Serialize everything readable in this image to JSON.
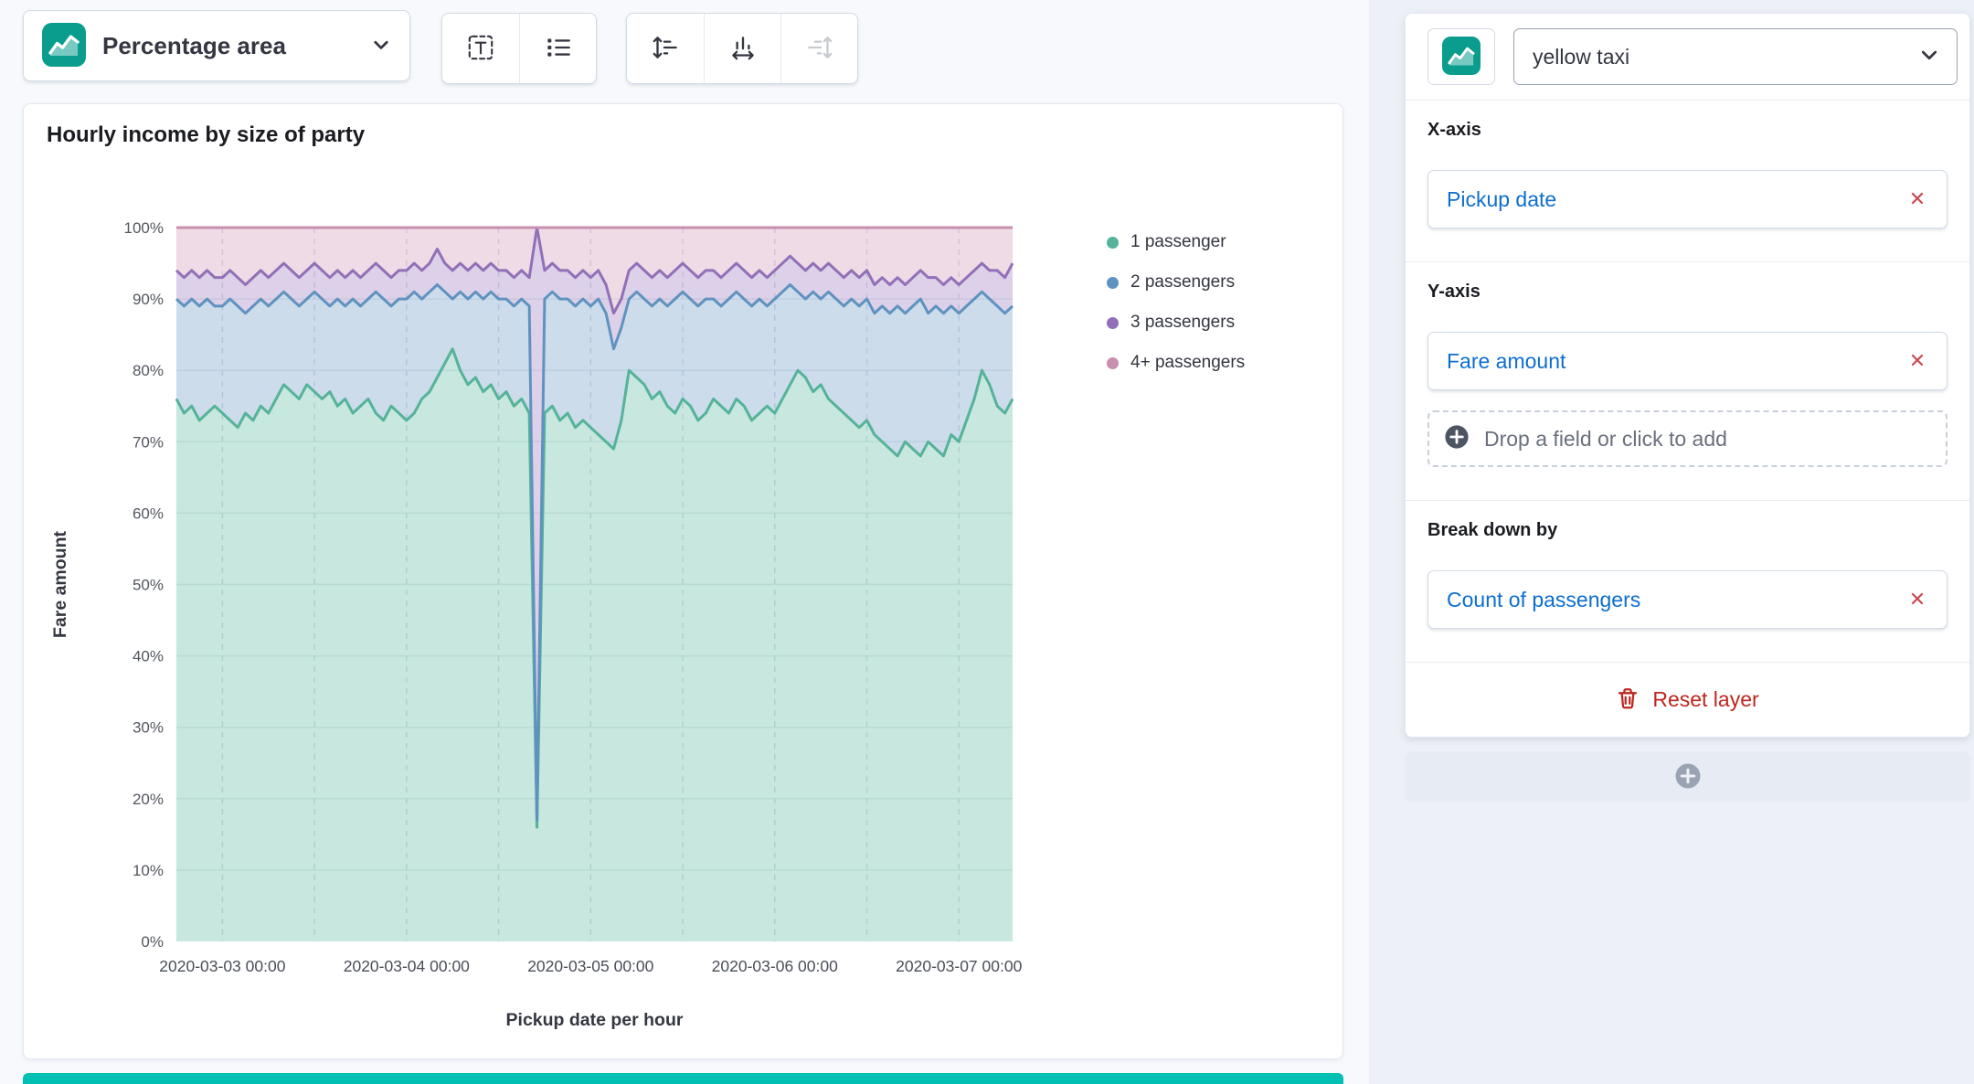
{
  "palette": {
    "series_colors": [
      "#54B399",
      "#6092C0",
      "#9170B8",
      "#CA8EAE"
    ],
    "chart_icon_teal": "#0A9D8E",
    "suggestion_accent": "#00BFB3",
    "link_blue": "#0D6ECF",
    "danger_red": "#BD271E"
  },
  "toolbar": {
    "chart_type_label": "Percentage area",
    "icons": [
      "area-chart",
      "chevron-down",
      "value-labels",
      "legend-settings",
      "left-axis",
      "bottom-axis",
      "right-axis"
    ],
    "right_axis_disabled": true
  },
  "chart_data": {
    "type": "area",
    "stacked": "percentage",
    "title": "Hourly income by size of party",
    "xlabel": "Pickup date per hour",
    "ylabel": "Fare amount",
    "ylim": [
      0,
      100
    ],
    "grid": true,
    "legend_position": "right",
    "x_start": "2020-03-02 18:00",
    "x_step_hours": 1,
    "x_tick_labels": [
      "2020-03-03 00:00",
      "2020-03-04 00:00",
      "2020-03-05 00:00",
      "2020-03-06 00:00",
      "2020-03-07 00:00"
    ],
    "x_tick_indices": [
      6,
      30,
      54,
      78,
      102
    ],
    "x_minor_grid_indices": [
      6,
      18,
      30,
      42,
      54,
      66,
      78,
      90,
      102
    ],
    "y_ticks": [
      "0%",
      "10%",
      "20%",
      "30%",
      "40%",
      "50%",
      "60%",
      "70%",
      "80%",
      "90%",
      "100%"
    ],
    "series": [
      {
        "name": "1 passenger",
        "color": "#54B399",
        "values": [
          76,
          74,
          75,
          73,
          74,
          75,
          74,
          73,
          72,
          74,
          73,
          75,
          74,
          76,
          78,
          77,
          76,
          78,
          77,
          76,
          77,
          75,
          76,
          74,
          75,
          76,
          74,
          73,
          75,
          74,
          73,
          74,
          76,
          77,
          79,
          81,
          83,
          80,
          78,
          79,
          77,
          78,
          76,
          77,
          75,
          76,
          74,
          16,
          74,
          75,
          73,
          74,
          72,
          73,
          72,
          71,
          70,
          69,
          73,
          80,
          79,
          78,
          76,
          77,
          75,
          74,
          76,
          75,
          73,
          74,
          76,
          75,
          74,
          76,
          75,
          73,
          74,
          75,
          74,
          76,
          78,
          80,
          79,
          77,
          78,
          76,
          75,
          74,
          73,
          72,
          73,
          71,
          70,
          69,
          68,
          70,
          69,
          68,
          70,
          69,
          68,
          71,
          70,
          73,
          76,
          80,
          78,
          75,
          74,
          76
        ]
      },
      {
        "name": "2 passengers",
        "color": "#6092C0",
        "values": [
          14,
          15,
          15,
          16,
          16,
          14,
          15,
          17,
          17,
          14,
          16,
          15,
          15,
          14,
          13,
          13,
          13,
          12,
          14,
          14,
          12,
          15,
          13,
          16,
          14,
          14,
          17,
          17,
          14,
          16,
          17,
          17,
          14,
          14,
          13,
          10,
          7,
          11,
          12,
          12,
          13,
          13,
          14,
          13,
          14,
          14,
          15,
          1,
          16,
          16,
          17,
          16,
          17,
          17,
          17,
          19,
          18,
          14,
          13,
          10,
          12,
          12,
          13,
          13,
          14,
          16,
          15,
          15,
          16,
          16,
          14,
          14,
          16,
          15,
          15,
          16,
          16,
          14,
          16,
          15,
          14,
          11,
          11,
          14,
          12,
          15,
          15,
          15,
          17,
          17,
          17,
          17,
          19,
          19,
          21,
          18,
          20,
          22,
          18,
          20,
          20,
          18,
          18,
          16,
          14,
          11,
          12,
          14,
          14,
          13
        ]
      },
      {
        "name": "3 passengers",
        "color": "#9170B8",
        "values": [
          4,
          4,
          4,
          4,
          4,
          4,
          4,
          4,
          4,
          4,
          4,
          4,
          4,
          4,
          4,
          4,
          4,
          4,
          4,
          4,
          4,
          4,
          4,
          4,
          4,
          4,
          4,
          4,
          4,
          4,
          4,
          4,
          4,
          4,
          5,
          4,
          4,
          4,
          4,
          4,
          4,
          4,
          4,
          4,
          4,
          4,
          4,
          83,
          4,
          4,
          4,
          4,
          4,
          4,
          4,
          4,
          4,
          5,
          4,
          4,
          4,
          4,
          4,
          4,
          4,
          4,
          4,
          4,
          4,
          4,
          4,
          4,
          4,
          4,
          4,
          4,
          4,
          4,
          4,
          4,
          4,
          4,
          4,
          4,
          4,
          4,
          4,
          4,
          4,
          4,
          4,
          4,
          4,
          4,
          4,
          4,
          4,
          4,
          5,
          4,
          4,
          4,
          4,
          4,
          4,
          4,
          4,
          5,
          5,
          6
        ]
      },
      {
        "name": "4+ passengers",
        "color": "#CA8EAE",
        "values": [
          6,
          7,
          6,
          7,
          6,
          7,
          7,
          6,
          7,
          8,
          7,
          6,
          7,
          6,
          5,
          6,
          7,
          6,
          5,
          6,
          7,
          6,
          7,
          6,
          7,
          6,
          5,
          6,
          7,
          6,
          6,
          5,
          6,
          5,
          3,
          5,
          6,
          5,
          6,
          5,
          6,
          5,
          6,
          6,
          7,
          6,
          7,
          0,
          6,
          5,
          6,
          6,
          7,
          6,
          7,
          6,
          8,
          12,
          10,
          6,
          5,
          6,
          7,
          6,
          7,
          6,
          5,
          6,
          7,
          6,
          6,
          7,
          6,
          5,
          6,
          7,
          6,
          7,
          6,
          5,
          4,
          5,
          6,
          5,
          6,
          5,
          6,
          7,
          6,
          7,
          6,
          8,
          7,
          8,
          7,
          8,
          7,
          6,
          7,
          7,
          8,
          7,
          8,
          7,
          6,
          5,
          6,
          6,
          7,
          5
        ]
      }
    ]
  },
  "sidebar": {
    "layer": {
      "dataset": "yellow taxi",
      "x_axis": {
        "label": "X-axis",
        "field": "Pickup date"
      },
      "y_axis": {
        "label": "Y-axis",
        "field": "Fare amount",
        "drop_hint": "Drop a field or click to add"
      },
      "breakdown": {
        "label": "Break down by",
        "field": "Count of passengers"
      },
      "reset_label": "Reset layer"
    }
  }
}
